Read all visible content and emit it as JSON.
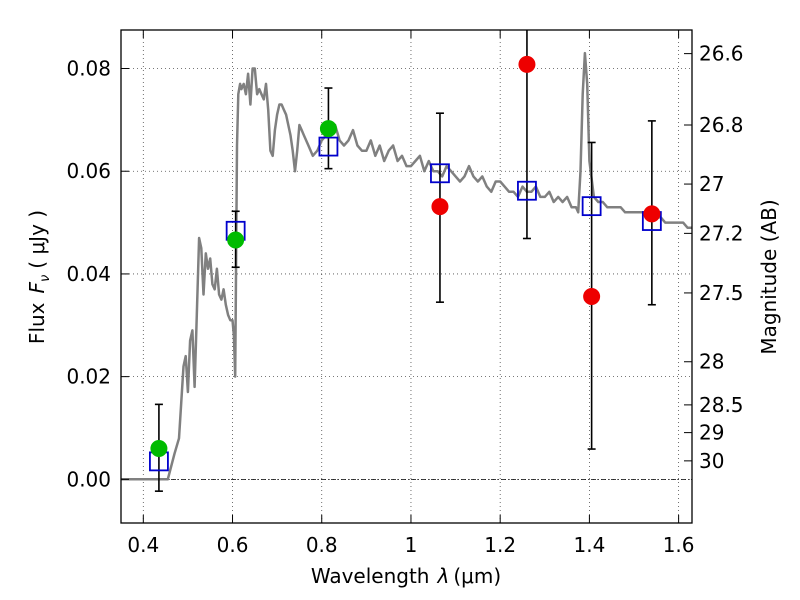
{
  "chart_data": {
    "type": "scatter",
    "title": "",
    "xlabel": "Wavelength",
    "xlabel_symbol": "λ",
    "xlabel_unit": "(μm)",
    "ylabel": "Flux",
    "ylabel_symbol": "F",
    "ylabel_symbol_sub": "ν",
    "ylabel_unit": "( μJy )",
    "y2label": "Magnitude (AB)",
    "xlim": [
      0.35,
      1.63
    ],
    "ylim": [
      -0.0085,
      0.0875
    ],
    "grid": true,
    "x_ticks": [
      0.4,
      0.6,
      0.8,
      1.0,
      1.2,
      1.4,
      1.6
    ],
    "x_tick_labels": [
      "0.4",
      "0.6",
      "0.8",
      "1",
      "1.2",
      "1.4",
      "1.6"
    ],
    "y_ticks": [
      0.0,
      0.02,
      0.04,
      0.06,
      0.08
    ],
    "y_tick_labels": [
      "0.00",
      "0.02",
      "0.04",
      "0.06",
      "0.08"
    ],
    "right_ticks": [
      {
        "flux": 0.0829,
        "label": "26.6"
      },
      {
        "flux": 0.069,
        "label": "26.8"
      },
      {
        "flux": 0.0575,
        "label": "27"
      },
      {
        "flux": 0.0479,
        "label": "27.2"
      },
      {
        "flux": 0.0363,
        "label": "27.5"
      },
      {
        "flux": 0.0229,
        "label": "28"
      },
      {
        "flux": 0.0145,
        "label": "28.5"
      },
      {
        "flux": 0.0091,
        "label": "29"
      },
      {
        "flux": 0.0036,
        "label": "30"
      }
    ],
    "series": [
      {
        "kind": "line",
        "color": "#808080",
        "x": [
          0.35,
          0.44,
          0.455,
          0.47,
          0.48,
          0.49,
          0.495,
          0.5,
          0.505,
          0.51,
          0.515,
          0.52,
          0.525,
          0.53,
          0.535,
          0.54,
          0.545,
          0.55,
          0.555,
          0.56,
          0.565,
          0.57,
          0.575,
          0.58,
          0.585,
          0.59,
          0.595,
          0.6,
          0.603,
          0.606,
          0.61,
          0.613,
          0.617,
          0.62,
          0.625,
          0.63,
          0.635,
          0.64,
          0.645,
          0.65,
          0.655,
          0.66,
          0.665,
          0.67,
          0.675,
          0.68,
          0.685,
          0.69,
          0.695,
          0.7,
          0.705,
          0.71,
          0.715,
          0.72,
          0.73,
          0.735,
          0.74,
          0.745,
          0.75,
          0.755,
          0.76,
          0.77,
          0.78,
          0.79,
          0.8,
          0.81,
          0.82,
          0.83,
          0.84,
          0.85,
          0.86,
          0.87,
          0.88,
          0.89,
          0.9,
          0.91,
          0.92,
          0.93,
          0.94,
          0.95,
          0.96,
          0.97,
          0.98,
          0.99,
          1.0,
          1.01,
          1.02,
          1.03,
          1.04,
          1.05,
          1.06,
          1.07,
          1.08,
          1.09,
          1.1,
          1.11,
          1.12,
          1.13,
          1.14,
          1.15,
          1.16,
          1.17,
          1.18,
          1.19,
          1.2,
          1.21,
          1.22,
          1.23,
          1.24,
          1.25,
          1.26,
          1.27,
          1.28,
          1.29,
          1.3,
          1.31,
          1.32,
          1.33,
          1.34,
          1.35,
          1.36,
          1.37,
          1.375,
          1.38,
          1.385,
          1.39,
          1.395,
          1.4,
          1.41,
          1.42,
          1.43,
          1.44,
          1.45,
          1.46,
          1.47,
          1.48,
          1.49,
          1.5,
          1.51,
          1.52,
          1.53,
          1.54,
          1.55,
          1.56,
          1.57,
          1.58,
          1.59,
          1.6,
          1.61,
          1.62,
          1.63
        ],
        "values": [
          0.0,
          0.0,
          0.0,
          0.005,
          0.008,
          0.022,
          0.024,
          0.017,
          0.027,
          0.029,
          0.018,
          0.032,
          0.047,
          0.045,
          0.036,
          0.044,
          0.041,
          0.043,
          0.038,
          0.037,
          0.041,
          0.036,
          0.035,
          0.037,
          0.034,
          0.032,
          0.031,
          0.031,
          0.028,
          0.02,
          0.065,
          0.075,
          0.077,
          0.076,
          0.077,
          0.075,
          0.079,
          0.073,
          0.08,
          0.08,
          0.075,
          0.076,
          0.075,
          0.074,
          0.077,
          0.072,
          0.064,
          0.063,
          0.068,
          0.071,
          0.073,
          0.073,
          0.072,
          0.071,
          0.067,
          0.064,
          0.06,
          0.064,
          0.069,
          0.068,
          0.067,
          0.065,
          0.063,
          0.064,
          0.066,
          0.067,
          0.068,
          0.069,
          0.066,
          0.065,
          0.066,
          0.068,
          0.065,
          0.064,
          0.064,
          0.066,
          0.063,
          0.065,
          0.062,
          0.064,
          0.065,
          0.062,
          0.063,
          0.061,
          0.061,
          0.062,
          0.063,
          0.06,
          0.062,
          0.06,
          0.06,
          0.059,
          0.061,
          0.06,
          0.059,
          0.058,
          0.059,
          0.061,
          0.059,
          0.058,
          0.059,
          0.057,
          0.056,
          0.058,
          0.058,
          0.057,
          0.056,
          0.056,
          0.055,
          0.057,
          0.056,
          0.056,
          0.057,
          0.055,
          0.055,
          0.056,
          0.054,
          0.055,
          0.054,
          0.055,
          0.053,
          0.053,
          0.052,
          0.06,
          0.075,
          0.083,
          0.077,
          0.062,
          0.055,
          0.054,
          0.054,
          0.053,
          0.053,
          0.053,
          0.053,
          0.052,
          0.052,
          0.052,
          0.052,
          0.052,
          0.051,
          0.051,
          0.051,
          0.051,
          0.05,
          0.05,
          0.05,
          0.05,
          0.05,
          0.049,
          0.049
        ]
      },
      {
        "kind": "open-square",
        "color": "#0000cc",
        "x": [
          0.435,
          0.607,
          0.815,
          1.065,
          1.26,
          1.405,
          1.54
        ],
        "values": [
          0.0035,
          0.0484,
          0.0648,
          0.0596,
          0.0562,
          0.0532,
          0.0503
        ]
      },
      {
        "kind": "filled-circle",
        "color": "#00bb00",
        "x": [
          0.435,
          0.607,
          0.815
        ],
        "values": [
          0.006,
          0.0466,
          0.0683
        ]
      },
      {
        "kind": "filled-circle",
        "color": "#ee0000",
        "x": [
          1.065,
          1.26,
          1.405,
          1.54
        ],
        "values": [
          0.0531,
          0.0808,
          0.0356,
          0.0517
        ]
      }
    ],
    "errorbars": [
      {
        "x": 0.435,
        "y_low": -0.0023,
        "y_high": 0.0146
      },
      {
        "x": 0.607,
        "y_low": 0.0413,
        "y_high": 0.0522
      },
      {
        "x": 0.815,
        "y_low": 0.0605,
        "y_high": 0.0762
      },
      {
        "x": 1.065,
        "y_low": 0.0345,
        "y_high": 0.0713
      },
      {
        "x": 1.26,
        "y_low": 0.0469,
        "y_high": 0.0876
      },
      {
        "x": 1.405,
        "y_low": 0.0059,
        "y_high": 0.0656
      },
      {
        "x": 1.54,
        "y_low": 0.034,
        "y_high": 0.0698
      }
    ],
    "colors": {
      "line": "#808080",
      "model_marker": "#0000cc",
      "green_marker": "#00bb00",
      "red_marker": "#ee0000",
      "errorbar": "#000000",
      "zero_line": "#000000"
    }
  }
}
